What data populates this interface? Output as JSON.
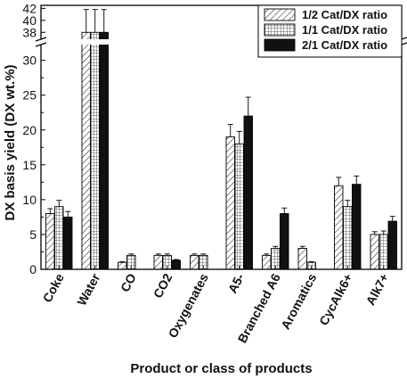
{
  "chart_data": {
    "type": "bar",
    "title": "",
    "xlabel": "Product or class of products",
    "ylabel": "DX basis yield  (DX wt.%)",
    "categories": [
      "Coke",
      "Water",
      "CO",
      "CO2",
      "Oxygenates",
      "A5-",
      "Branched A6",
      "Aromatics",
      "CycAlk6+",
      "Alk7+"
    ],
    "series": [
      {
        "name": "1/2 Cat/DX ratio",
        "pattern": "diagonal",
        "values": [
          8.0,
          38.0,
          1.0,
          2.0,
          2.0,
          19.0,
          2.0,
          3.0,
          12.0,
          5.0
        ],
        "errors": [
          0.7,
          3.8,
          0.1,
          0.2,
          0.2,
          1.8,
          0.2,
          0.3,
          1.2,
          0.4
        ]
      },
      {
        "name": "1/1 Cat/DX ratio",
        "pattern": "grid",
        "values": [
          9.0,
          38.0,
          2.0,
          2.0,
          2.0,
          18.0,
          3.0,
          1.0,
          9.0,
          5.0
        ],
        "errors": [
          0.9,
          3.8,
          0.2,
          0.2,
          0.2,
          1.8,
          0.3,
          0.1,
          0.9,
          0.5
        ]
      },
      {
        "name": "2/1 Cat/DX ratio",
        "pattern": "solid",
        "values": [
          7.5,
          38.0,
          null,
          1.3,
          null,
          22.0,
          8.0,
          null,
          12.2,
          6.9
        ],
        "errors": [
          0.8,
          3.8,
          null,
          0.1,
          null,
          2.7,
          0.8,
          null,
          1.2,
          0.7
        ]
      }
    ],
    "y_ticks_lower": [
      "0",
      "5",
      "10",
      "15",
      "20",
      "25",
      "30"
    ],
    "y_ticks_upper": [
      "38",
      "40",
      "42"
    ],
    "ylim_lower": [
      0,
      32
    ],
    "ylim_upper": [
      37,
      42.5
    ],
    "axis_break": true,
    "legend_position": "top-right",
    "grid": false
  }
}
